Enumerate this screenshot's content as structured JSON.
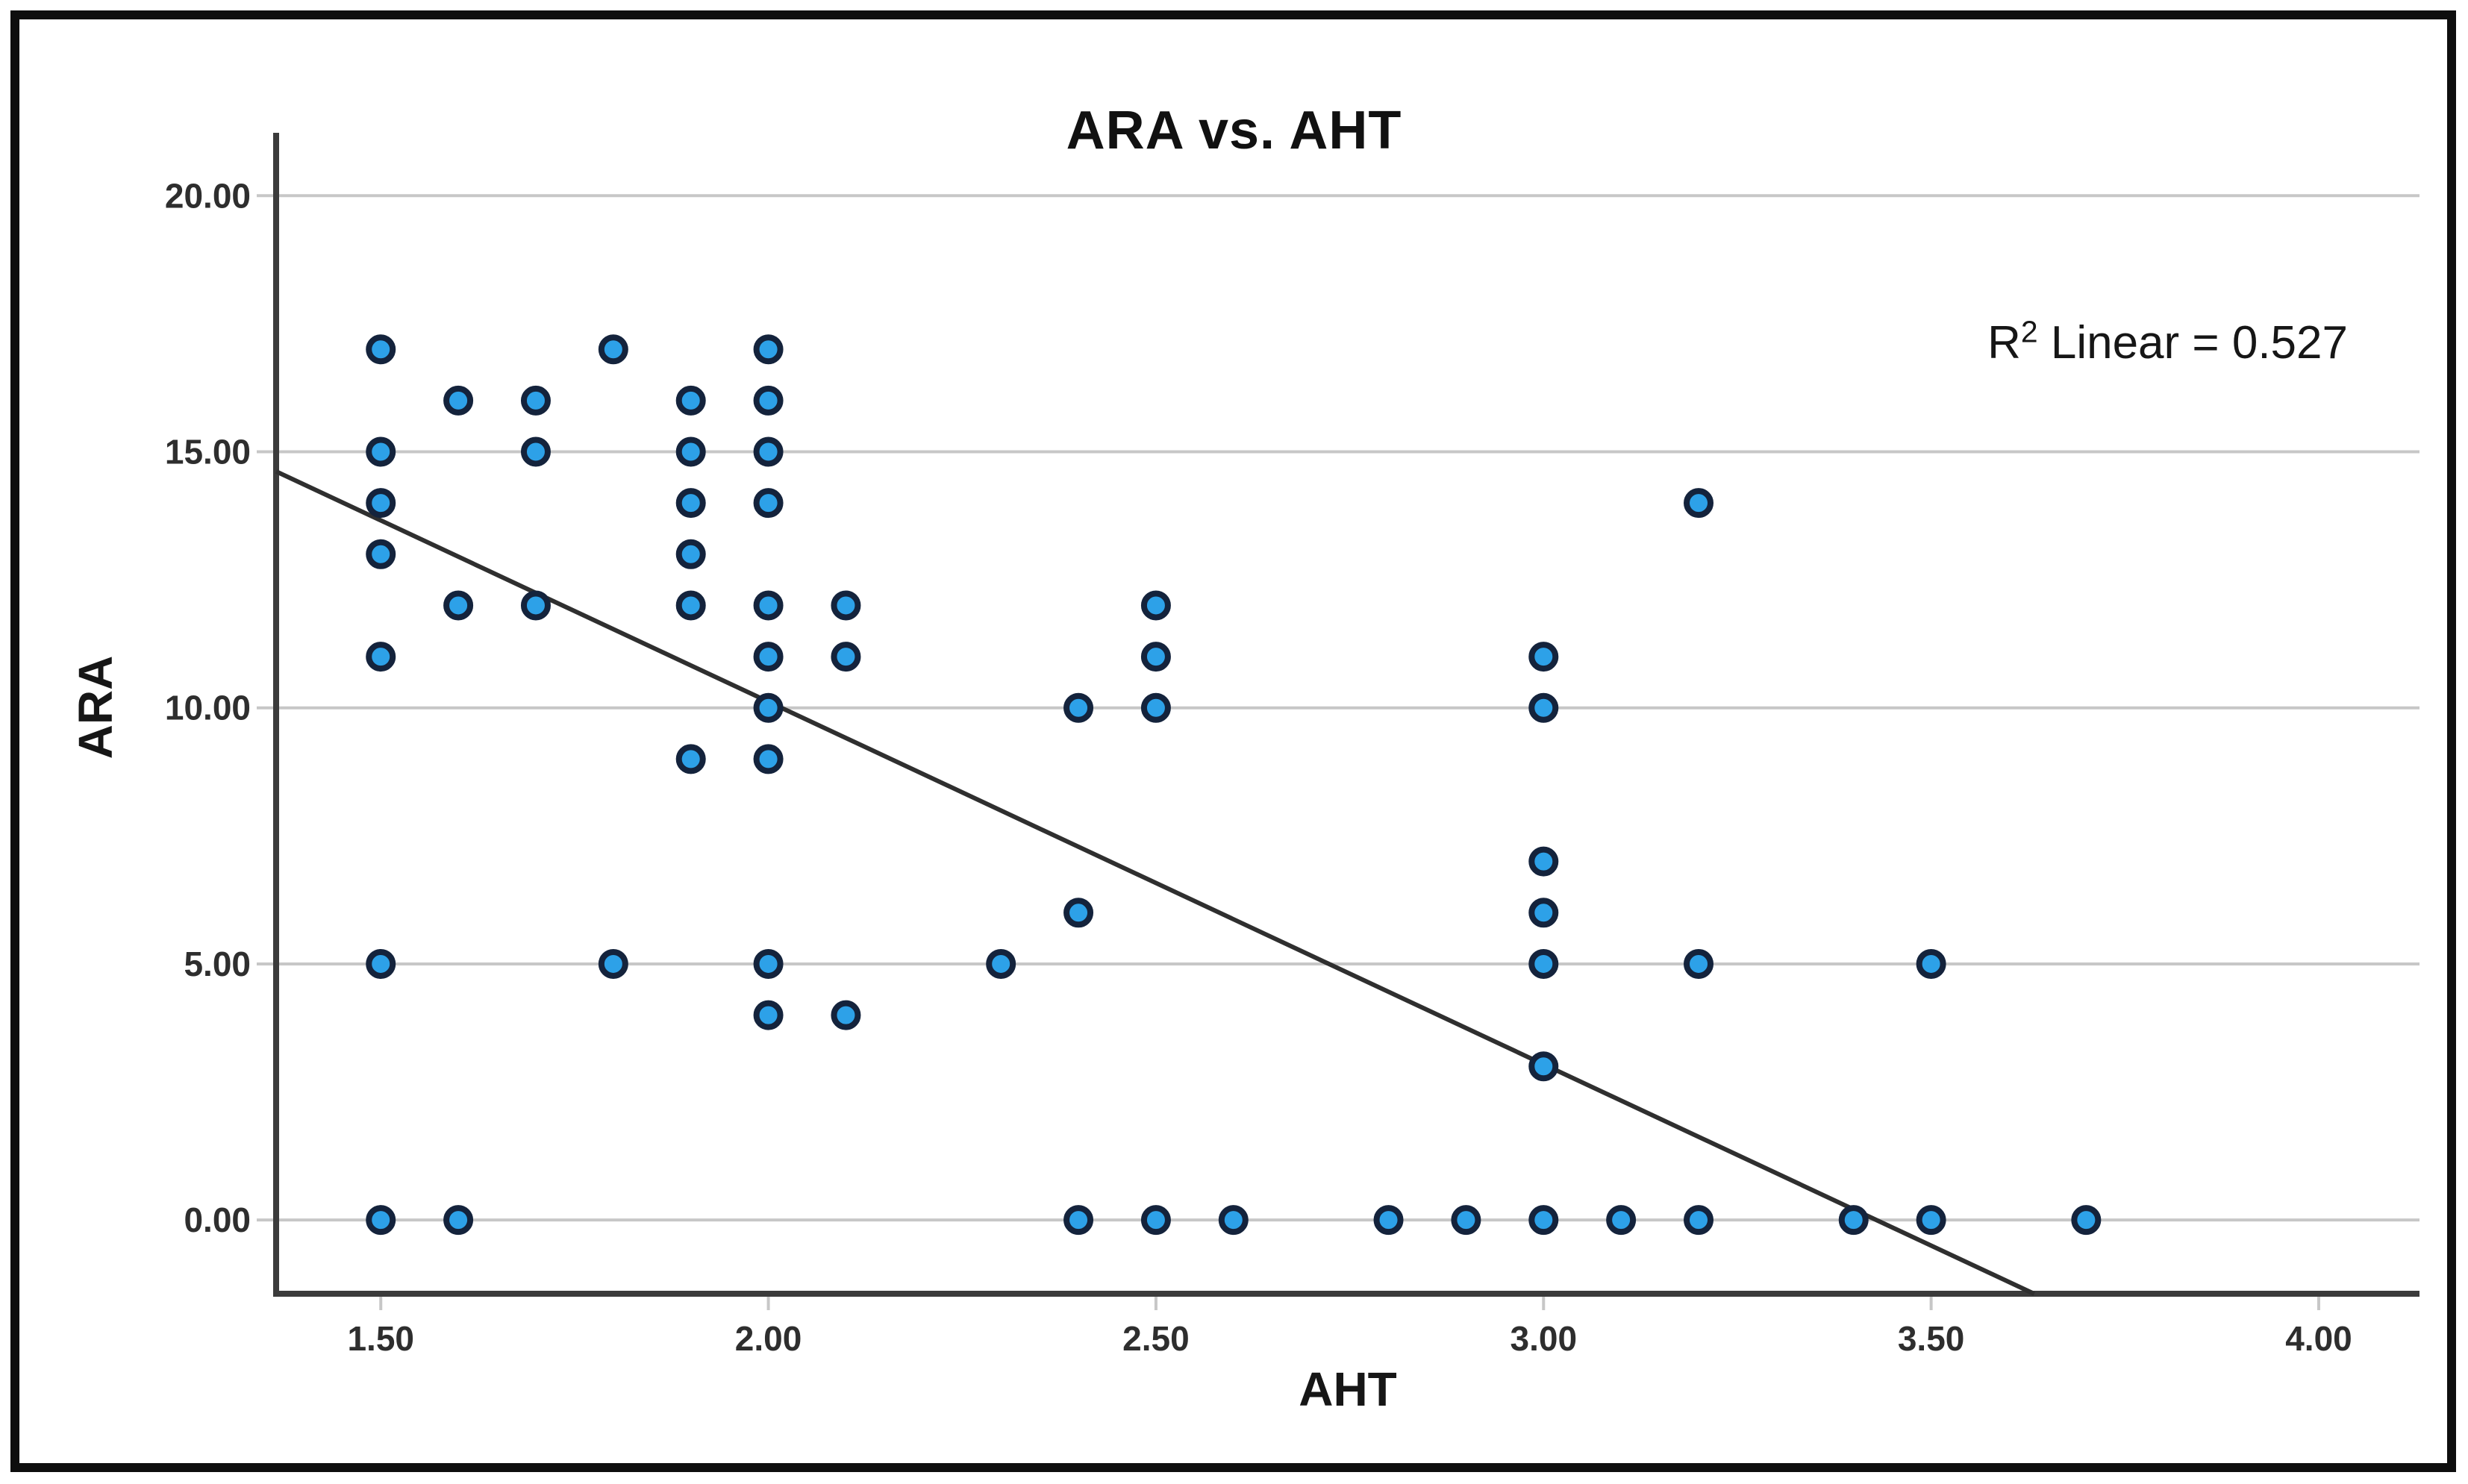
{
  "figure": {
    "title": "ARA vs. AHT",
    "annotation": {
      "prefix": "R",
      "sup": "2",
      "rest": " Linear = 0.527"
    }
  },
  "chart_data": {
    "type": "scatter",
    "title": "ARA vs. AHT",
    "xlabel": "AHT",
    "ylabel": "ARA",
    "xlim": [
      1.365,
      4.13
    ],
    "ylim": [
      -1.44,
      21.17
    ],
    "grid": "horizontal-only",
    "legend": "none",
    "x_tick_values": [
      1.5,
      2.0,
      2.5,
      3.0,
      3.5,
      4.0
    ],
    "x_tick_labels": [
      "1.50",
      "2.00",
      "2.50",
      "3.00",
      "3.50",
      "4.00"
    ],
    "y_tick_values": [
      0,
      5,
      10,
      15,
      20
    ],
    "y_tick_labels": [
      "0.00",
      "5.00",
      "10.00",
      "15.00",
      "20.00"
    ],
    "points": [
      [
        1.5,
        17
      ],
      [
        1.8,
        17
      ],
      [
        2.0,
        17
      ],
      [
        1.6,
        16
      ],
      [
        1.7,
        16
      ],
      [
        1.9,
        16
      ],
      [
        2.0,
        16
      ],
      [
        1.5,
        15
      ],
      [
        1.7,
        15
      ],
      [
        1.9,
        15
      ],
      [
        2.0,
        15
      ],
      [
        1.5,
        14
      ],
      [
        1.9,
        14
      ],
      [
        2.0,
        14
      ],
      [
        3.2,
        14
      ],
      [
        1.5,
        13
      ],
      [
        1.9,
        13
      ],
      [
        1.6,
        12
      ],
      [
        1.7,
        12
      ],
      [
        1.9,
        12
      ],
      [
        2.0,
        12
      ],
      [
        2.1,
        12
      ],
      [
        2.5,
        12
      ],
      [
        1.5,
        11
      ],
      [
        2.0,
        11
      ],
      [
        2.1,
        11
      ],
      [
        2.5,
        11
      ],
      [
        3.0,
        11
      ],
      [
        2.0,
        10
      ],
      [
        2.4,
        10
      ],
      [
        2.5,
        10
      ],
      [
        3.0,
        10
      ],
      [
        1.9,
        9
      ],
      [
        2.0,
        9
      ],
      [
        3.0,
        7
      ],
      [
        2.4,
        6
      ],
      [
        3.0,
        6
      ],
      [
        1.5,
        5
      ],
      [
        1.8,
        5
      ],
      [
        2.0,
        5
      ],
      [
        2.3,
        5
      ],
      [
        3.0,
        5
      ],
      [
        3.2,
        5
      ],
      [
        3.5,
        5
      ],
      [
        2.0,
        4
      ],
      [
        2.1,
        4
      ],
      [
        3.0,
        3
      ],
      [
        1.5,
        0
      ],
      [
        1.6,
        0
      ],
      [
        2.4,
        0
      ],
      [
        2.5,
        0
      ],
      [
        2.6,
        0
      ],
      [
        2.8,
        0
      ],
      [
        2.9,
        0
      ],
      [
        3.0,
        0
      ],
      [
        3.1,
        0
      ],
      [
        3.2,
        0
      ],
      [
        3.4,
        0
      ],
      [
        3.5,
        0
      ],
      [
        3.7,
        0
      ]
    ],
    "fit_line": {
      "slope": -7.08,
      "intercept": 24.28,
      "x_start": 1.365,
      "x_end": 3.633,
      "r2": 0.527
    },
    "colors": {
      "point_fill": "#2da1e8",
      "point_stroke": "#14233c",
      "fit_line": "#2f2f2f",
      "grid": "#c7c7c7",
      "axis": "#3b3b3b",
      "tick_text": "#2e2e2e",
      "title_text": "#111111"
    }
  }
}
